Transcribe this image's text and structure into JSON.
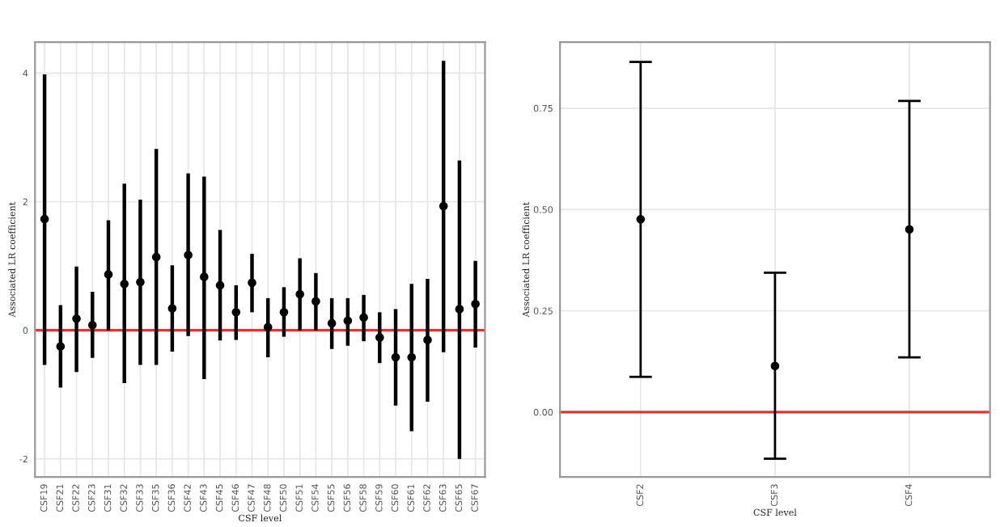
{
  "chart_data": [
    {
      "type": "scatter",
      "xlabel": "CSF level",
      "ylabel": "Associated LR coefficient",
      "categories": [
        "CSF19",
        "CSF21",
        "CSF22",
        "CSF23",
        "CSF31",
        "CSF32",
        "CSF33",
        "CSF35",
        "CSF36",
        "CSF42",
        "CSF43",
        "CSF45",
        "CSF46",
        "CSF47",
        "CSF48",
        "CSF50",
        "CSF51",
        "CSF54",
        "CSF55",
        "CSF56",
        "CSF58",
        "CSF59",
        "CSF60",
        "CSF61",
        "CSF62",
        "CSF63",
        "CSF65",
        "CSF67"
      ],
      "series": [
        {
          "color": "#000000",
          "values": [
            1.73,
            -0.25,
            0.18,
            0.08,
            0.87,
            0.72,
            0.75,
            1.14,
            0.34,
            1.17,
            0.83,
            0.7,
            0.28,
            0.74,
            0.05,
            0.28,
            0.56,
            0.45,
            0.11,
            0.15,
            0.2,
            -0.11,
            -0.42,
            -0.42,
            -0.15,
            1.93,
            0.33,
            0.41
          ],
          "errors": [
            [
              -0.54,
              3.98
            ],
            [
              -0.89,
              0.39
            ],
            [
              -0.65,
              0.99
            ],
            [
              -0.43,
              0.6
            ],
            [
              0.0,
              1.71
            ],
            [
              -0.82,
              2.28
            ],
            [
              -0.54,
              2.03
            ],
            [
              -0.54,
              2.82
            ],
            [
              -0.33,
              1.01
            ],
            [
              -0.09,
              2.44
            ],
            [
              -0.76,
              2.39
            ],
            [
              -0.16,
              1.56
            ],
            [
              -0.15,
              0.7
            ],
            [
              0.28,
              1.19
            ],
            [
              -0.42,
              0.5
            ],
            [
              -0.1,
              0.67
            ],
            [
              0.0,
              1.12
            ],
            [
              0.0,
              0.89
            ],
            [
              -0.29,
              0.5
            ],
            [
              -0.24,
              0.5
            ],
            [
              -0.17,
              0.55
            ],
            [
              -0.51,
              0.28
            ],
            [
              -1.17,
              0.33
            ],
            [
              -1.57,
              0.72
            ],
            [
              -1.11,
              0.8
            ],
            [
              -0.34,
              4.19
            ],
            [
              -2.0,
              2.64
            ],
            [
              -0.27,
              1.08
            ]
          ]
        }
      ],
      "ylim": [
        -2.28,
        4.48
      ],
      "yticks": [
        -2,
        0,
        2,
        4
      ],
      "grid": true,
      "marker": "circle",
      "ref_lines": [
        {
          "axis": "y",
          "value": 0,
          "color": "#e8312f"
        }
      ]
    },
    {
      "type": "scatter",
      "xlabel": "CSF level",
      "ylabel": "Associated LR coefficient",
      "categories": [
        "CSF2",
        "CSF3",
        "CSF4"
      ],
      "series": [
        {
          "color": "#000000",
          "values": [
            0.476,
            0.114,
            0.451
          ],
          "errors": [
            [
              0.087,
              0.864
            ],
            [
              -0.115,
              0.344
            ],
            [
              0.135,
              0.768
            ]
          ]
        }
      ],
      "ylim": [
        -0.16,
        0.913
      ],
      "yticks": [
        {
          "value": 0,
          "label": "0.00"
        },
        {
          "value": 0.25,
          "label": "0.25"
        },
        {
          "value": 0.5,
          "label": "0.50"
        },
        {
          "value": 0.75,
          "label": "0.75"
        }
      ],
      "grid": true,
      "marker": "circle",
      "ref_lines": [
        {
          "axis": "y",
          "value": 0,
          "color": "#e8312f"
        }
      ]
    }
  ]
}
